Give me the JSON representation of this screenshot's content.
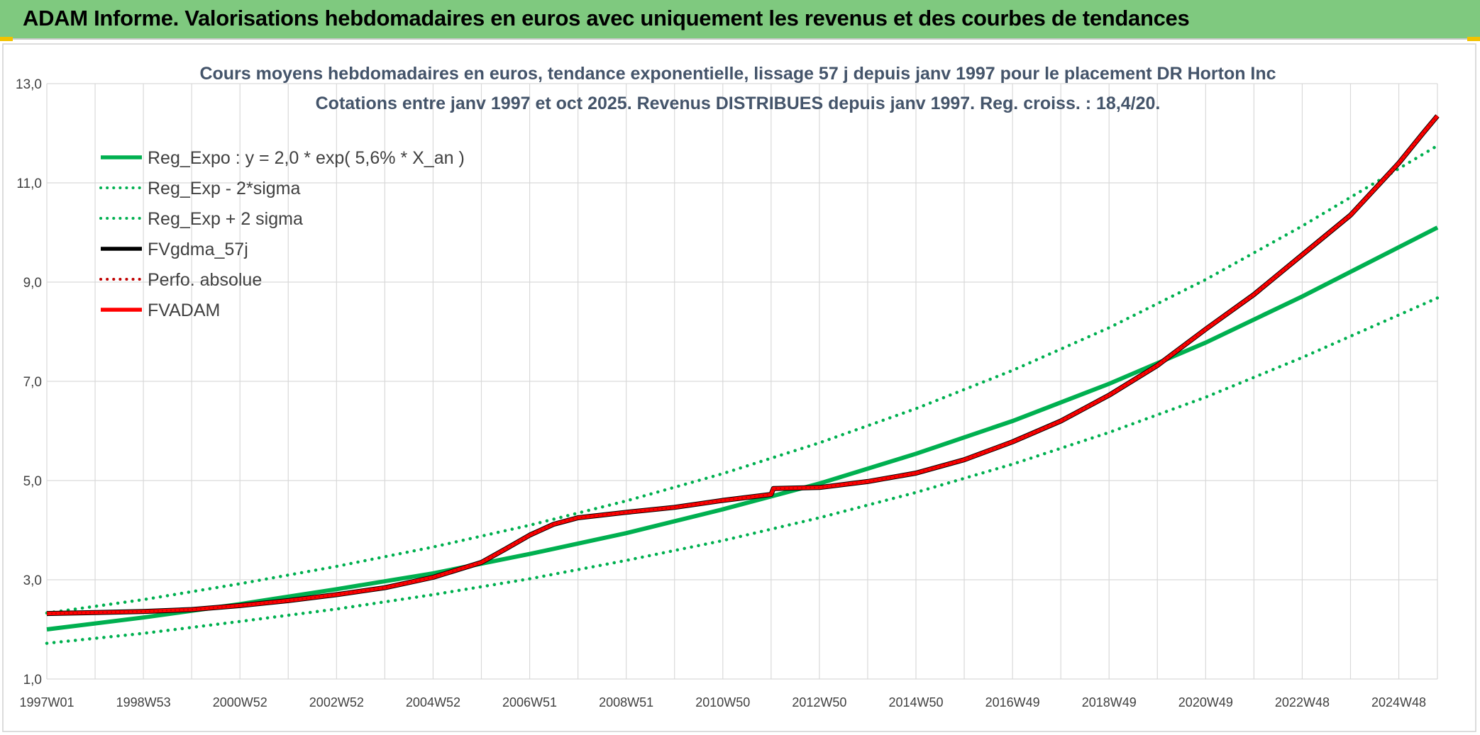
{
  "header": {
    "title": "ADAM Informe. Valorisations hebdomadaires en euros avec uniquement les revenus et des courbes de tendances"
  },
  "colors": {
    "header_bg": "#7fc97f",
    "regression": "#00b050",
    "fvadam": "#ff0000",
    "fvgdma": "#000000",
    "perfo": "#c00000",
    "grid": "#d9d9d9",
    "title": "#44546a"
  },
  "chart_data": {
    "type": "line",
    "title_line1": "Cours moyens hebdomadaires en euros, tendance exponentielle, lissage 57 j depuis janv 1997 pour le placement DR Horton Inc",
    "title_line2": "Cotations entre janv 1997 et oct 2025. Revenus DISTRIBUES depuis janv 1997. Reg. croiss. : 18,4/20.",
    "ylim": [
      1.0,
      13.0
    ],
    "xlim": [
      1997.0,
      2025.8
    ],
    "y_ticks": [
      "1,0",
      "3,0",
      "5,0",
      "7,0",
      "9,0",
      "11,0",
      "13,0"
    ],
    "x_ticks": [
      "1997W01",
      "1998W53",
      "2000W52",
      "2002W52",
      "2004W52",
      "2006W51",
      "2008W51",
      "2010W50",
      "2012W50",
      "2014W50",
      "2016W49",
      "2018W49",
      "2020W49",
      "2022W48",
      "2024W48"
    ],
    "grid": true,
    "legend_position": "top-left",
    "legend": [
      {
        "label": "Reg_Expo : y = 2,0 * exp( 5,6% *  X_an )",
        "color": "#00b050",
        "style": "solid"
      },
      {
        "label": "Reg_Exp - 2*sigma",
        "color": "#00b050",
        "style": "dotted"
      },
      {
        "label": "Reg_Exp + 2 sigma",
        "color": "#00b050",
        "style": "dotted"
      },
      {
        "label": "FVgdma_57j",
        "color": "#000000",
        "style": "solid"
      },
      {
        "label": "Perfo. absolue",
        "color": "#c00000",
        "style": "dotted"
      },
      {
        "label": "FVADAM",
        "color": "#ff0000",
        "style": "solid"
      }
    ],
    "regression": {
      "x": [
        1997,
        1999,
        2001,
        2003,
        2005,
        2007,
        2009,
        2011,
        2013,
        2015,
        2017,
        2019,
        2021,
        2023,
        2025.8
      ],
      "reg_expo": [
        2.0,
        2.24,
        2.51,
        2.81,
        3.13,
        3.52,
        3.94,
        4.42,
        4.94,
        5.54,
        6.2,
        6.95,
        7.78,
        8.71,
        10.1
      ],
      "reg_minus_2sigma": [
        1.72,
        1.92,
        2.16,
        2.41,
        2.7,
        3.02,
        3.39,
        3.79,
        4.25,
        4.76,
        5.33,
        5.97,
        6.68,
        7.48,
        8.68
      ],
      "reg_plus_2sigma": [
        2.33,
        2.6,
        2.92,
        3.27,
        3.66,
        4.1,
        4.59,
        5.14,
        5.76,
        6.45,
        7.22,
        8.08,
        9.05,
        10.13,
        11.75
      ]
    },
    "fvadam": {
      "x": [
        1997,
        1998,
        1999,
        2000,
        2001,
        2002,
        2003,
        2004,
        2005,
        2006,
        2006.5,
        2007,
        2007.5,
        2008,
        2009,
        2010,
        2011,
        2012,
        2012.05,
        2013,
        2014,
        2015,
        2016,
        2017,
        2018,
        2019,
        2020,
        2021,
        2022,
        2023,
        2024,
        2025,
        2025.5,
        2025.8
      ],
      "y": [
        2.32,
        2.34,
        2.36,
        2.4,
        2.48,
        2.58,
        2.7,
        2.84,
        3.05,
        3.35,
        3.62,
        3.9,
        4.12,
        4.25,
        4.36,
        4.46,
        4.6,
        4.72,
        4.84,
        4.86,
        4.98,
        5.15,
        5.42,
        5.78,
        6.2,
        6.72,
        7.32,
        8.05,
        8.75,
        9.55,
        10.35,
        11.4,
        12.0,
        12.35
      ]
    }
  }
}
